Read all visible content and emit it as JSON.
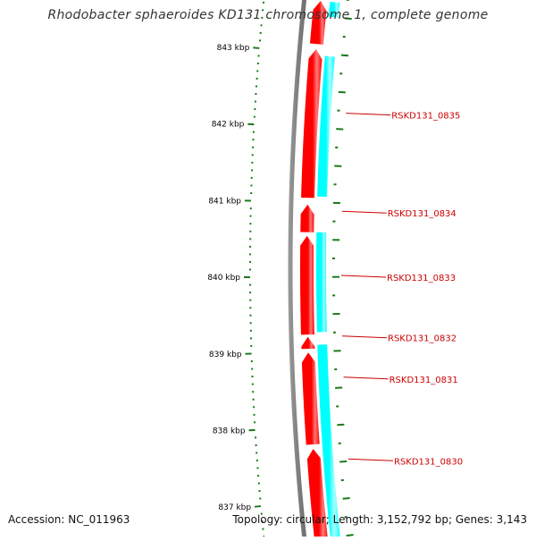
{
  "title": "Rhodobacter sphaeroides KD131 chromosome 1, complete genome",
  "footer": {
    "accession": "Accession: NC_011963",
    "topology": "Topology: circular; Length: 3,152,792 bp; Genes: 3,143"
  },
  "colors": {
    "backbone": "#7f7f7f",
    "forward_gene": "#ff0000",
    "reverse_gene": "#00ffff",
    "ruler_tick": "#1a7a1a",
    "gene_label": "#cc0000",
    "scale_label": "#000000"
  },
  "scale": {
    "unit": "kbp",
    "labels": [
      "837 kbp",
      "838 kbp",
      "839 kbp",
      "840 kbp",
      "841 kbp",
      "842 kbp",
      "843 kbp"
    ]
  },
  "forward_genes": [
    {
      "start_kbp": 836.4,
      "end_kbp": 837.7
    },
    {
      "start_kbp": 837.76,
      "end_kbp": 838.99
    },
    {
      "start_kbp": 839.04,
      "end_kbp": 839.2
    },
    {
      "start_kbp": 839.23,
      "end_kbp": 840.55
    },
    {
      "start_kbp": 840.6,
      "end_kbp": 840.97
    },
    {
      "start_kbp": 841.06,
      "end_kbp": 843.05
    },
    {
      "start_kbp": 843.12,
      "end_kbp": 843.7
    }
  ],
  "reverse_genes": [
    {
      "start_kbp": 836.4,
      "end_kbp": 839.09
    },
    {
      "start_kbp": 839.26,
      "end_kbp": 840.6
    },
    {
      "start_kbp": 841.08,
      "end_kbp": 842.97
    },
    {
      "start_kbp": 843.5,
      "end_kbp": 843.7
    }
  ],
  "gene_labels": [
    {
      "name": "RSKD131_0830",
      "position_kbp": 837.53
    },
    {
      "name": "RSKD131_0831",
      "position_kbp": 838.64
    },
    {
      "name": "RSKD131_0832",
      "position_kbp": 839.2
    },
    {
      "name": "RSKD131_0833",
      "position_kbp": 840.02
    },
    {
      "name": "RSKD131_0834",
      "position_kbp": 840.89
    },
    {
      "name": "RSKD131_0835",
      "position_kbp": 842.22
    }
  ]
}
